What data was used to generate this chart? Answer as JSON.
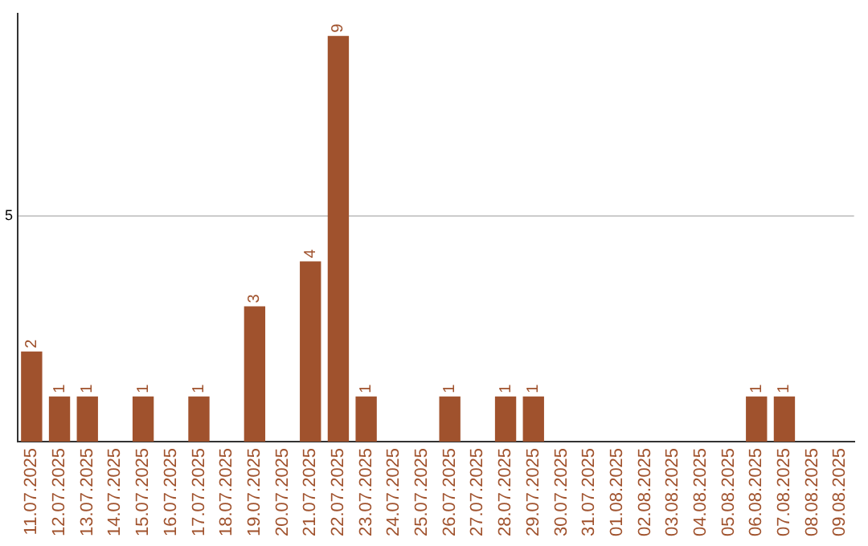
{
  "chart_data": {
    "type": "bar",
    "categories": [
      "11.07.2025",
      "12.07.2025",
      "13.07.2025",
      "14.07.2025",
      "15.07.2025",
      "16.07.2025",
      "17.07.2025",
      "18.07.2025",
      "19.07.2025",
      "20.07.2025",
      "21.07.2025",
      "22.07.2025",
      "23.07.2025",
      "24.07.2025",
      "25.07.2025",
      "26.07.2025",
      "27.07.2025",
      "28.07.2025",
      "29.07.2025",
      "30.07.2025",
      "31.07.2025",
      "01.08.2025",
      "02.08.2025",
      "03.08.2025",
      "04.08.2025",
      "05.08.2025",
      "06.08.2025",
      "07.08.2025",
      "08.08.2025",
      "09.08.2025"
    ],
    "values": [
      2,
      1,
      1,
      0,
      1,
      0,
      1,
      0,
      3,
      0,
      4,
      9,
      1,
      0,
      0,
      1,
      0,
      1,
      1,
      0,
      0,
      0,
      0,
      0,
      0,
      0,
      1,
      1,
      0,
      0
    ],
    "value_labels": [
      "2",
      "1",
      "1",
      null,
      "1",
      null,
      "1",
      null,
      "3",
      null,
      "4",
      "9",
      "1",
      null,
      null,
      "1",
      null,
      "1",
      "1",
      null,
      null,
      null,
      null,
      null,
      null,
      null,
      "1",
      "1",
      null,
      null
    ],
    "color": "#a0522d",
    "ylim": [
      0,
      9.5
    ],
    "yticks": [
      5
    ],
    "grid": "y",
    "legend": false
  }
}
